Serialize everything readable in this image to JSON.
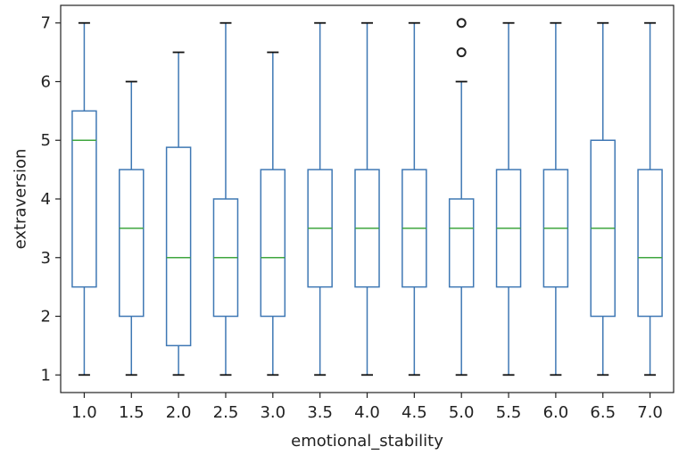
{
  "chart_data": {
    "type": "box",
    "title": "",
    "xlabel": "emotional_stability",
    "ylabel": "extraversion",
    "ylim": [
      0.7,
      7.3
    ],
    "yticks": [
      "1",
      "2",
      "3",
      "4",
      "5",
      "6",
      "7"
    ],
    "grid": false,
    "colors": {
      "box": "#3f78b4",
      "median": "#3fa63f",
      "outlier": "#222222",
      "frame": "#222222"
    },
    "categories": [
      "1.0",
      "1.5",
      "2.0",
      "2.5",
      "3.0",
      "3.5",
      "4.0",
      "4.5",
      "5.0",
      "5.5",
      "6.0",
      "6.5",
      "7.0"
    ],
    "boxes": [
      {
        "whisker_low": 1,
        "q1": 2.5,
        "median": 5.0,
        "q3": 5.5,
        "whisker_high": 7,
        "outliers": []
      },
      {
        "whisker_low": 1,
        "q1": 2.0,
        "median": 3.5,
        "q3": 4.5,
        "whisker_high": 6,
        "outliers": []
      },
      {
        "whisker_low": 1,
        "q1": 1.5,
        "median": 3.0,
        "q3": 4.88,
        "whisker_high": 6.5,
        "outliers": []
      },
      {
        "whisker_low": 1,
        "q1": 2.0,
        "median": 3.0,
        "q3": 4.0,
        "whisker_high": 7,
        "outliers": []
      },
      {
        "whisker_low": 1,
        "q1": 2.0,
        "median": 3.0,
        "q3": 4.5,
        "whisker_high": 6.5,
        "outliers": []
      },
      {
        "whisker_low": 1,
        "q1": 2.5,
        "median": 3.5,
        "q3": 4.5,
        "whisker_high": 7,
        "outliers": []
      },
      {
        "whisker_low": 1,
        "q1": 2.5,
        "median": 3.5,
        "q3": 4.5,
        "whisker_high": 7,
        "outliers": []
      },
      {
        "whisker_low": 1,
        "q1": 2.5,
        "median": 3.5,
        "q3": 4.5,
        "whisker_high": 7,
        "outliers": []
      },
      {
        "whisker_low": 1,
        "q1": 2.5,
        "median": 3.5,
        "q3": 4.0,
        "whisker_high": 6,
        "outliers": [
          6.5,
          7.0
        ]
      },
      {
        "whisker_low": 1,
        "q1": 2.5,
        "median": 3.5,
        "q3": 4.5,
        "whisker_high": 7,
        "outliers": []
      },
      {
        "whisker_low": 1,
        "q1": 2.5,
        "median": 3.5,
        "q3": 4.5,
        "whisker_high": 7,
        "outliers": []
      },
      {
        "whisker_low": 1,
        "q1": 2.0,
        "median": 3.5,
        "q3": 5.0,
        "whisker_high": 7,
        "outliers": []
      },
      {
        "whisker_low": 1,
        "q1": 2.0,
        "median": 3.0,
        "q3": 4.5,
        "whisker_high": 7,
        "outliers": []
      }
    ]
  }
}
